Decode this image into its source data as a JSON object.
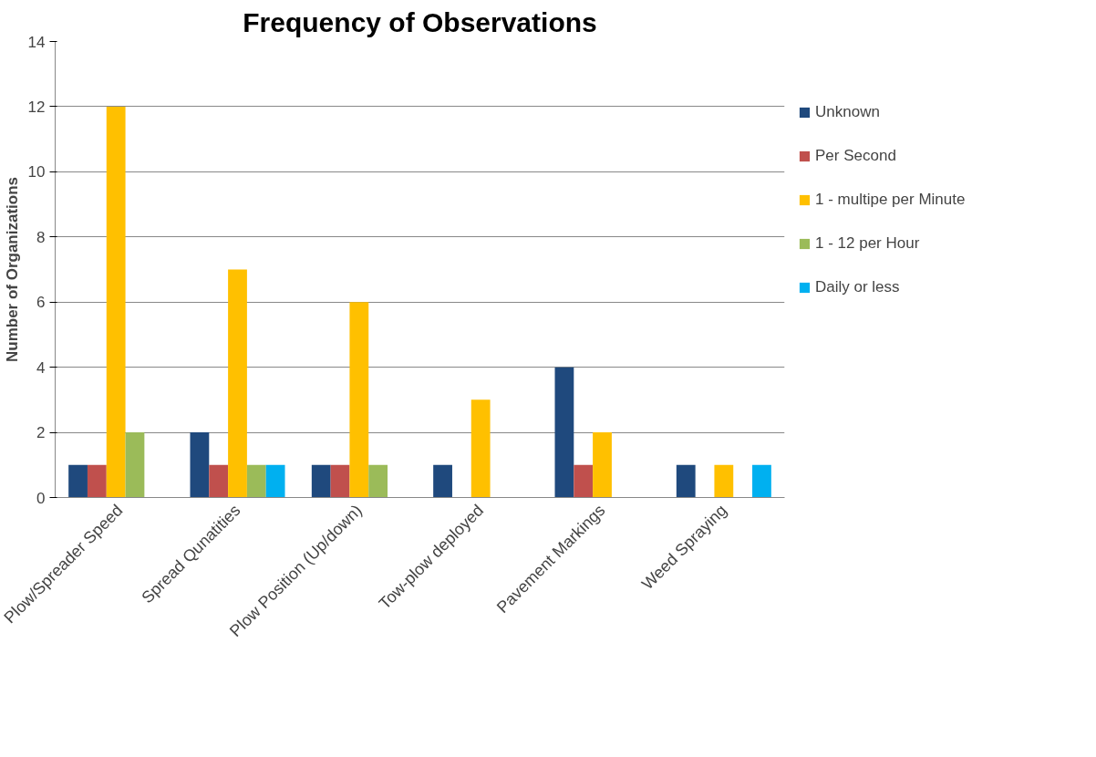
{
  "chart_data": {
    "type": "bar",
    "title": "Frequency of Observations",
    "ylabel": "Number of Organizations",
    "categories": [
      "Plow/Spreader Speed",
      "Spread Qunatities",
      "Plow Position (Up/down)",
      "Tow-plow deployed",
      "Pavement Markings",
      "Weed Spraying"
    ],
    "series": [
      {
        "name": "Unknown",
        "color": "#1f497d",
        "values": [
          1,
          2,
          1,
          1,
          4,
          1
        ]
      },
      {
        "name": "Per Second",
        "color": "#c0504d",
        "values": [
          1,
          1,
          1,
          0,
          1,
          0
        ]
      },
      {
        "name": "1 - multipe per Minute",
        "color": "#ffc000",
        "values": [
          12,
          7,
          6,
          3,
          2,
          1
        ]
      },
      {
        "name": "1 - 12 per Hour",
        "color": "#9bbb59",
        "values": [
          2,
          1,
          1,
          0,
          0,
          0
        ]
      },
      {
        "name": "Daily or less",
        "color": "#00b0f0",
        "values": [
          0,
          1,
          0,
          0,
          0,
          1
        ]
      }
    ],
    "ylim": [
      0,
      14
    ],
    "yticks": [
      0,
      2,
      4,
      6,
      8,
      10,
      12,
      14
    ],
    "grid": "y",
    "legend": "right"
  }
}
